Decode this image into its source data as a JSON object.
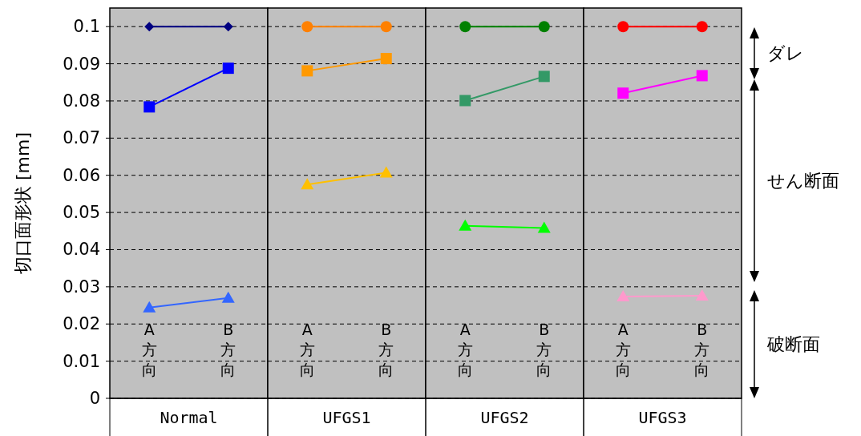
{
  "chart_data": [
    {
      "type": "line",
      "xlabel": "Normal",
      "ylabel": "切口面形状 [mm]",
      "categories": [
        "A方向",
        "B方向"
      ],
      "ylim": [
        0,
        0.105
      ],
      "yticks": [
        0,
        0.01,
        0.02,
        0.03,
        0.04,
        0.05,
        0.06,
        0.07,
        0.08,
        0.09,
        0.1
      ],
      "grid": "y",
      "series": [
        {
          "color": "#000080",
          "marker": "diamond",
          "values": [
            0.1,
            0.1
          ]
        },
        {
          "color": "#0000ff",
          "marker": "square",
          "values": [
            0.0784,
            0.0888
          ]
        },
        {
          "color": "#3366ff",
          "marker": "triangle",
          "values": [
            0.0244,
            0.027
          ]
        }
      ]
    },
    {
      "type": "line",
      "xlabel": "UFGS1",
      "categories": [
        "A方向",
        "B方向"
      ],
      "ylim": [
        0,
        0.105
      ],
      "yticks": [
        0,
        0.01,
        0.02,
        0.03,
        0.04,
        0.05,
        0.06,
        0.07,
        0.08,
        0.09,
        0.1
      ],
      "grid": "y",
      "tick_labels": "x",
      "series": [
        {
          "color": "#ff8000",
          "marker": "circle",
          "values": [
            0.1,
            0.1
          ]
        },
        {
          "color": "#ff9900",
          "marker": "square",
          "values": [
            0.0881,
            0.0914
          ]
        },
        {
          "color": "#ffc000",
          "marker": "triangle",
          "values": [
            0.0575,
            0.0607
          ]
        }
      ]
    },
    {
      "type": "line",
      "xlabel": "UFGS2",
      "categories": [
        "A方向",
        "B方向"
      ],
      "ylim": [
        0,
        0.105
      ],
      "yticks": [
        0,
        0.01,
        0.02,
        0.03,
        0.04,
        0.05,
        0.06,
        0.07,
        0.08,
        0.09,
        0.1
      ],
      "grid": "y",
      "tick_labels": "x",
      "series": [
        {
          "color": "#008000",
          "marker": "circle",
          "values": [
            0.1,
            0.1
          ]
        },
        {
          "color": "#339966",
          "marker": "square",
          "values": [
            0.0801,
            0.0866
          ]
        },
        {
          "color": "#00ff00",
          "marker": "triangle",
          "values": [
            0.0464,
            0.0458
          ]
        }
      ]
    },
    {
      "type": "line",
      "xlabel": "UFGS3",
      "categories": [
        "A方向",
        "B方向"
      ],
      "ylim": [
        0,
        0.105
      ],
      "yticks": [
        0,
        0.01,
        0.02,
        0.03,
        0.04,
        0.05,
        0.06,
        0.07,
        0.08,
        0.09,
        0.1
      ],
      "grid": "y",
      "tick_labels": "x",
      "series": [
        {
          "color": "#ff0000",
          "marker": "circle",
          "values": [
            0.1,
            0.1
          ]
        },
        {
          "color": "#ff00ff",
          "marker": "square",
          "values": [
            0.0821,
            0.0868
          ]
        },
        {
          "color": "#ff99cc",
          "marker": "triangle",
          "values": [
            0.0274,
            0.0276
          ]
        }
      ],
      "annotations": [
        "ダレ",
        "せん断面",
        "破断面"
      ]
    }
  ]
}
